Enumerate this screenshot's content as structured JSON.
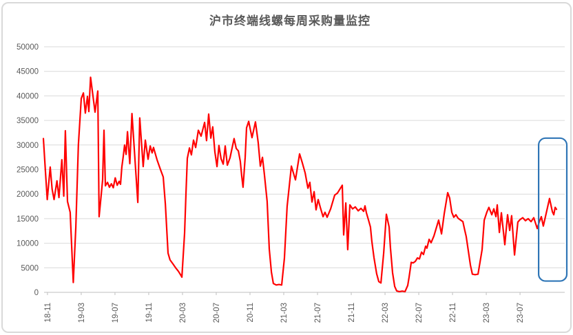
{
  "chart_data": {
    "type": "line",
    "title": "沪市终端线螺每周采购量监控",
    "xlabel": "",
    "ylabel": "",
    "legend": "none",
    "grid": "horizontal",
    "x_tick_labels": [
      "18-11",
      "19-03",
      "19-07",
      "19-11",
      "20-03",
      "20-07",
      "20-11",
      "21-03",
      "21-07",
      "21-11",
      "22-03",
      "22-07",
      "22-11",
      "23-03",
      "23-07"
    ],
    "y_ticks": [
      0,
      5000,
      10000,
      15000,
      20000,
      25000,
      30000,
      35000,
      40000,
      45000,
      50000
    ],
    "ylim": [
      0,
      50000
    ],
    "x_unit": "week_index_from_2018-11",
    "series": [
      {
        "name": "weekly_purchase_volume",
        "color": "#FF0000",
        "points": [
          [
            0,
            31300
          ],
          [
            1,
            25000
          ],
          [
            2,
            18900
          ],
          [
            3.5,
            25500
          ],
          [
            4.5,
            21000
          ],
          [
            5.5,
            18900
          ],
          [
            7,
            22700
          ],
          [
            8,
            19300
          ],
          [
            9.5,
            27000
          ],
          [
            10.5,
            19600
          ],
          [
            11.3,
            32900
          ],
          [
            12.4,
            18500
          ],
          [
            13.8,
            16300
          ],
          [
            15.4,
            2000
          ],
          [
            16.7,
            13300
          ],
          [
            18,
            30000
          ],
          [
            19.5,
            39500
          ],
          [
            20.6,
            40600
          ],
          [
            21.6,
            36500
          ],
          [
            22.7,
            39900
          ],
          [
            23.4,
            36800
          ],
          [
            24.3,
            43800
          ],
          [
            26.6,
            36700
          ],
          [
            28,
            41000
          ],
          [
            28.7,
            15400
          ],
          [
            29.8,
            19900
          ],
          [
            30.5,
            22900
          ],
          [
            31.2,
            33000
          ],
          [
            31.9,
            21700
          ],
          [
            33,
            22400
          ],
          [
            34,
            21400
          ],
          [
            35,
            22100
          ],
          [
            36,
            21300
          ],
          [
            37,
            23300
          ],
          [
            38,
            21800
          ],
          [
            39,
            22600
          ],
          [
            39.7,
            22000
          ],
          [
            40.4,
            25500
          ],
          [
            41.1,
            27600
          ],
          [
            41.8,
            30000
          ],
          [
            42.6,
            28100
          ],
          [
            43.3,
            32700
          ],
          [
            44.5,
            26200
          ],
          [
            45.6,
            36400
          ],
          [
            48.6,
            18300
          ],
          [
            49.6,
            35500
          ],
          [
            51.4,
            25600
          ],
          [
            52.5,
            31000
          ],
          [
            53.9,
            27100
          ],
          [
            55,
            29800
          ],
          [
            56,
            28400
          ],
          [
            56.7,
            29500
          ],
          [
            58.5,
            27000
          ],
          [
            60.3,
            25000
          ],
          [
            61.7,
            23500
          ],
          [
            62.8,
            18000
          ],
          [
            64.2,
            8000
          ],
          [
            65.2,
            6600
          ],
          [
            66.7,
            5800
          ],
          [
            68.1,
            5000
          ],
          [
            69.5,
            4300
          ],
          [
            70.6,
            3600
          ],
          [
            71.3,
            3100
          ],
          [
            72.7,
            12000
          ],
          [
            73.4,
            20000
          ],
          [
            74.1,
            27300
          ],
          [
            75.2,
            29400
          ],
          [
            76.2,
            28000
          ],
          [
            77.3,
            31000
          ],
          [
            78.4,
            29500
          ],
          [
            79.8,
            33000
          ],
          [
            81.2,
            31800
          ],
          [
            83,
            34600
          ],
          [
            84,
            30900
          ],
          [
            85.1,
            36300
          ],
          [
            86.2,
            31400
          ],
          [
            87.2,
            33700
          ],
          [
            88.3,
            28600
          ],
          [
            89.4,
            25600
          ],
          [
            90.4,
            29900
          ],
          [
            91.5,
            27200
          ],
          [
            92.6,
            26100
          ],
          [
            93.6,
            29800
          ],
          [
            94.7,
            25900
          ],
          [
            96.1,
            27400
          ],
          [
            98.2,
            31300
          ],
          [
            99.3,
            29300
          ],
          [
            100.4,
            28800
          ],
          [
            101.4,
            26700
          ],
          [
            102.1,
            23800
          ],
          [
            102.8,
            21400
          ],
          [
            103.9,
            27500
          ],
          [
            104.6,
            33500
          ],
          [
            105.7,
            34800
          ],
          [
            107.4,
            31500
          ],
          [
            109.2,
            34700
          ],
          [
            110.6,
            30500
          ],
          [
            111.7,
            25700
          ],
          [
            112.8,
            27500
          ],
          [
            113.8,
            24000
          ],
          [
            115.2,
            18500
          ],
          [
            116.3,
            8800
          ],
          [
            117.4,
            4100
          ],
          [
            118.4,
            1800
          ],
          [
            119.9,
            1500
          ],
          [
            121.3,
            1600
          ],
          [
            122.7,
            1500
          ],
          [
            124.1,
            7000
          ],
          [
            125.5,
            17500
          ],
          [
            127.7,
            25700
          ],
          [
            129.8,
            22900
          ],
          [
            131.9,
            28200
          ],
          [
            133.3,
            26400
          ],
          [
            134.8,
            24300
          ],
          [
            136.2,
            21200
          ],
          [
            137.2,
            22400
          ],
          [
            138.3,
            18400
          ],
          [
            139.4,
            20500
          ],
          [
            140.4,
            16800
          ],
          [
            141.5,
            18900
          ],
          [
            142.6,
            17300
          ],
          [
            144,
            15400
          ],
          [
            145,
            16300
          ],
          [
            146.1,
            15300
          ],
          [
            147.9,
            17000
          ],
          [
            150,
            19800
          ],
          [
            151.4,
            20200
          ],
          [
            153.9,
            21800
          ],
          [
            154.6,
            11700
          ],
          [
            155.7,
            18200
          ],
          [
            156.7,
            8700
          ],
          [
            157.8,
            17800
          ],
          [
            159.2,
            17000
          ],
          [
            160.6,
            17400
          ],
          [
            162.1,
            16600
          ],
          [
            163.5,
            17100
          ],
          [
            164.9,
            16500
          ],
          [
            165.6,
            17600
          ],
          [
            166.3,
            16200
          ],
          [
            167.4,
            14700
          ],
          [
            168.4,
            13300
          ],
          [
            169.1,
            10400
          ],
          [
            170.2,
            7100
          ],
          [
            171.6,
            3800
          ],
          [
            172.7,
            2200
          ],
          [
            173.8,
            1900
          ],
          [
            175.2,
            8000
          ],
          [
            176.6,
            15900
          ],
          [
            178,
            13300
          ],
          [
            178.7,
            9100
          ],
          [
            179.8,
            4000
          ],
          [
            180.9,
            1200
          ],
          [
            181.9,
            300
          ],
          [
            183.3,
            150
          ],
          [
            184.8,
            250
          ],
          [
            186.2,
            150
          ],
          [
            187.6,
            1400
          ],
          [
            188.3,
            3100
          ],
          [
            189.4,
            6100
          ],
          [
            190.4,
            6000
          ],
          [
            191.5,
            6300
          ],
          [
            192.6,
            7000
          ],
          [
            193.6,
            6800
          ],
          [
            194.7,
            8200
          ],
          [
            195.7,
            7700
          ],
          [
            196.8,
            9400
          ],
          [
            197.5,
            9000
          ],
          [
            198.6,
            10800
          ],
          [
            199.6,
            10100
          ],
          [
            201.1,
            11500
          ],
          [
            203.5,
            14700
          ],
          [
            205,
            11900
          ],
          [
            206.4,
            16000
          ],
          [
            208.2,
            20300
          ],
          [
            209.2,
            19200
          ],
          [
            210.3,
            16300
          ],
          [
            211.3,
            15300
          ],
          [
            212.4,
            15800
          ],
          [
            213.5,
            15100
          ],
          [
            214.5,
            14800
          ],
          [
            216,
            14400
          ],
          [
            217,
            12600
          ],
          [
            217.7,
            11400
          ],
          [
            219.9,
            5500
          ],
          [
            220.9,
            3700
          ],
          [
            222.3,
            3600
          ],
          [
            223.8,
            3700
          ],
          [
            225.9,
            8700
          ],
          [
            227,
            14700
          ],
          [
            228.4,
            16400
          ],
          [
            229.4,
            17300
          ],
          [
            230.9,
            15800
          ],
          [
            231.9,
            17000
          ],
          [
            233,
            15400
          ],
          [
            233.7,
            17800
          ],
          [
            234.8,
            12200
          ],
          [
            235.8,
            16200
          ],
          [
            237.6,
            9700
          ],
          [
            239,
            15800
          ],
          [
            240.1,
            12600
          ],
          [
            241.1,
            15600
          ],
          [
            242.6,
            7600
          ],
          [
            244.3,
            14300
          ],
          [
            245.4,
            14800
          ],
          [
            246.8,
            15200
          ],
          [
            248.2,
            14600
          ],
          [
            249.6,
            15000
          ],
          [
            251.1,
            14400
          ],
          [
            252.5,
            15200
          ],
          [
            254.3,
            13000
          ],
          [
            255.3,
            14300
          ],
          [
            256.4,
            15400
          ],
          [
            257.4,
            13500
          ],
          [
            258.9,
            16100
          ],
          [
            260.6,
            19100
          ],
          [
            262.1,
            16400
          ],
          [
            262.8,
            15800
          ],
          [
            263.5,
            17300
          ],
          [
            264.2,
            16900
          ]
        ]
      }
    ],
    "annotations": [
      {
        "type": "highlight-box",
        "meaning": "highlight of most recent weeks",
        "week_range": [
          255,
          269.5
        ],
        "value_range": [
          2300,
          31400
        ],
        "color": "#2E75B6"
      }
    ],
    "colors": {
      "line": "#FF0000",
      "gridline": "#D9D9D9",
      "axis_line": "#BFBFBF",
      "axis_text": "#595959",
      "title_text": "#595959",
      "outer_border": "#D9D9D9",
      "background": "#FFFFFF"
    }
  }
}
